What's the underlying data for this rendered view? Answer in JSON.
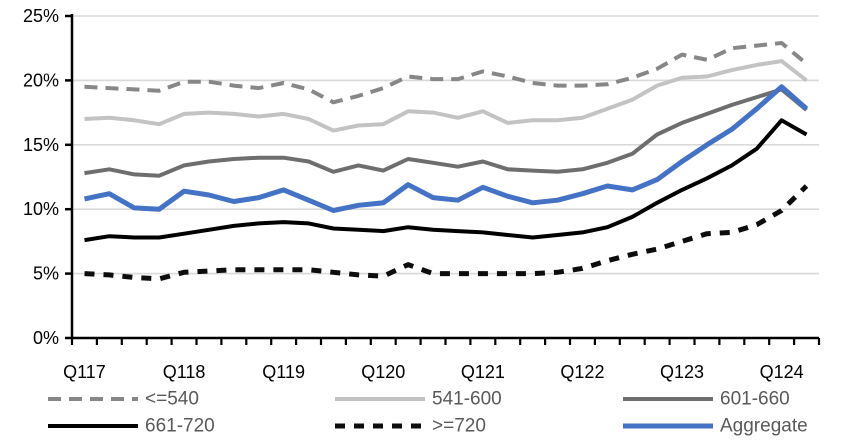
{
  "chart_data": {
    "type": "line",
    "title": "",
    "xlabel": "",
    "ylabel": "",
    "ylim": [
      0,
      25
    ],
    "ytick_step": 5,
    "ytick_labels": [
      "0%",
      "5%",
      "10%",
      "15%",
      "20%",
      "25%"
    ],
    "grid": true,
    "legend_position": "bottom",
    "n_points": 30,
    "x_label_every": 4,
    "x_labels": [
      "Q117",
      "Q118",
      "Q119",
      "Q120",
      "Q121",
      "Q122",
      "Q123",
      "Q124"
    ],
    "colors": {
      "axis": "#000000",
      "gridline": "#d9d9d9",
      "legend_text": "#595959",
      "axis_text": "#000000",
      "accent_blue": "#4472c4"
    },
    "series": [
      {
        "key": "le540",
        "name": "<=540",
        "color": "#878787",
        "dash": "13 8",
        "width": 4,
        "values": [
          19.5,
          19.4,
          19.3,
          19.2,
          19.9,
          19.9,
          19.6,
          19.4,
          19.8,
          19.3,
          18.3,
          18.8,
          19.4,
          20.3,
          20.1,
          20.1,
          20.7,
          20.3,
          19.8,
          19.6,
          19.6,
          19.7,
          20.2,
          20.9,
          22.0,
          21.6,
          22.5,
          22.7,
          22.9,
          21.3
        ]
      },
      {
        "key": "s541-600",
        "name": "541-600",
        "color": "#c3c3c3",
        "dash": null,
        "width": 4,
        "values": [
          17.0,
          17.1,
          16.9,
          16.6,
          17.4,
          17.5,
          17.4,
          17.2,
          17.4,
          17.0,
          16.1,
          16.5,
          16.6,
          17.6,
          17.5,
          17.1,
          17.6,
          16.7,
          16.9,
          16.9,
          17.1,
          17.8,
          18.5,
          19.6,
          20.2,
          20.3,
          20.8,
          21.2,
          21.5,
          20.0
        ]
      },
      {
        "key": "s601-660",
        "name": "601-660",
        "color": "#6e6e6e",
        "dash": null,
        "width": 4,
        "values": [
          12.8,
          13.1,
          12.7,
          12.6,
          13.4,
          13.7,
          13.9,
          14.0,
          14.0,
          13.7,
          12.9,
          13.4,
          13.0,
          13.9,
          13.6,
          13.3,
          13.7,
          13.1,
          13.0,
          12.9,
          13.1,
          13.6,
          14.3,
          15.8,
          16.7,
          17.4,
          18.1,
          18.7,
          19.3,
          17.7
        ]
      },
      {
        "key": "s661-720",
        "name": "661-720",
        "color": "#000000",
        "dash": null,
        "width": 4,
        "values": [
          7.6,
          7.9,
          7.8,
          7.8,
          8.1,
          8.4,
          8.7,
          8.9,
          9.0,
          8.9,
          8.5,
          8.4,
          8.3,
          8.6,
          8.4,
          8.3,
          8.2,
          8.0,
          7.8,
          8.0,
          8.2,
          8.6,
          9.4,
          10.5,
          11.5,
          12.4,
          13.4,
          14.7,
          16.9,
          15.8
        ]
      },
      {
        "key": "ge720",
        "name": ">=720",
        "color": "#0d0d0d",
        "dash": "10 9",
        "width": 5,
        "values": [
          5.0,
          4.9,
          4.7,
          4.6,
          5.1,
          5.2,
          5.3,
          5.3,
          5.3,
          5.3,
          5.1,
          4.9,
          4.8,
          5.7,
          5.0,
          5.0,
          5.0,
          5.0,
          5.0,
          5.1,
          5.4,
          6.0,
          6.5,
          6.9,
          7.5,
          8.1,
          8.2,
          8.8,
          9.9,
          11.8
        ]
      },
      {
        "key": "aggregate",
        "name": "Aggregate",
        "color": "#4472c4",
        "dash": null,
        "width": 5,
        "values": [
          10.8,
          11.2,
          10.1,
          10.0,
          11.4,
          11.1,
          10.6,
          10.9,
          11.5,
          10.7,
          9.9,
          10.3,
          10.5,
          11.9,
          10.9,
          10.7,
          11.7,
          11.0,
          10.5,
          10.7,
          11.2,
          11.8,
          11.5,
          12.3,
          13.7,
          15.0,
          16.2,
          17.8,
          19.5,
          17.8
        ]
      }
    ]
  }
}
